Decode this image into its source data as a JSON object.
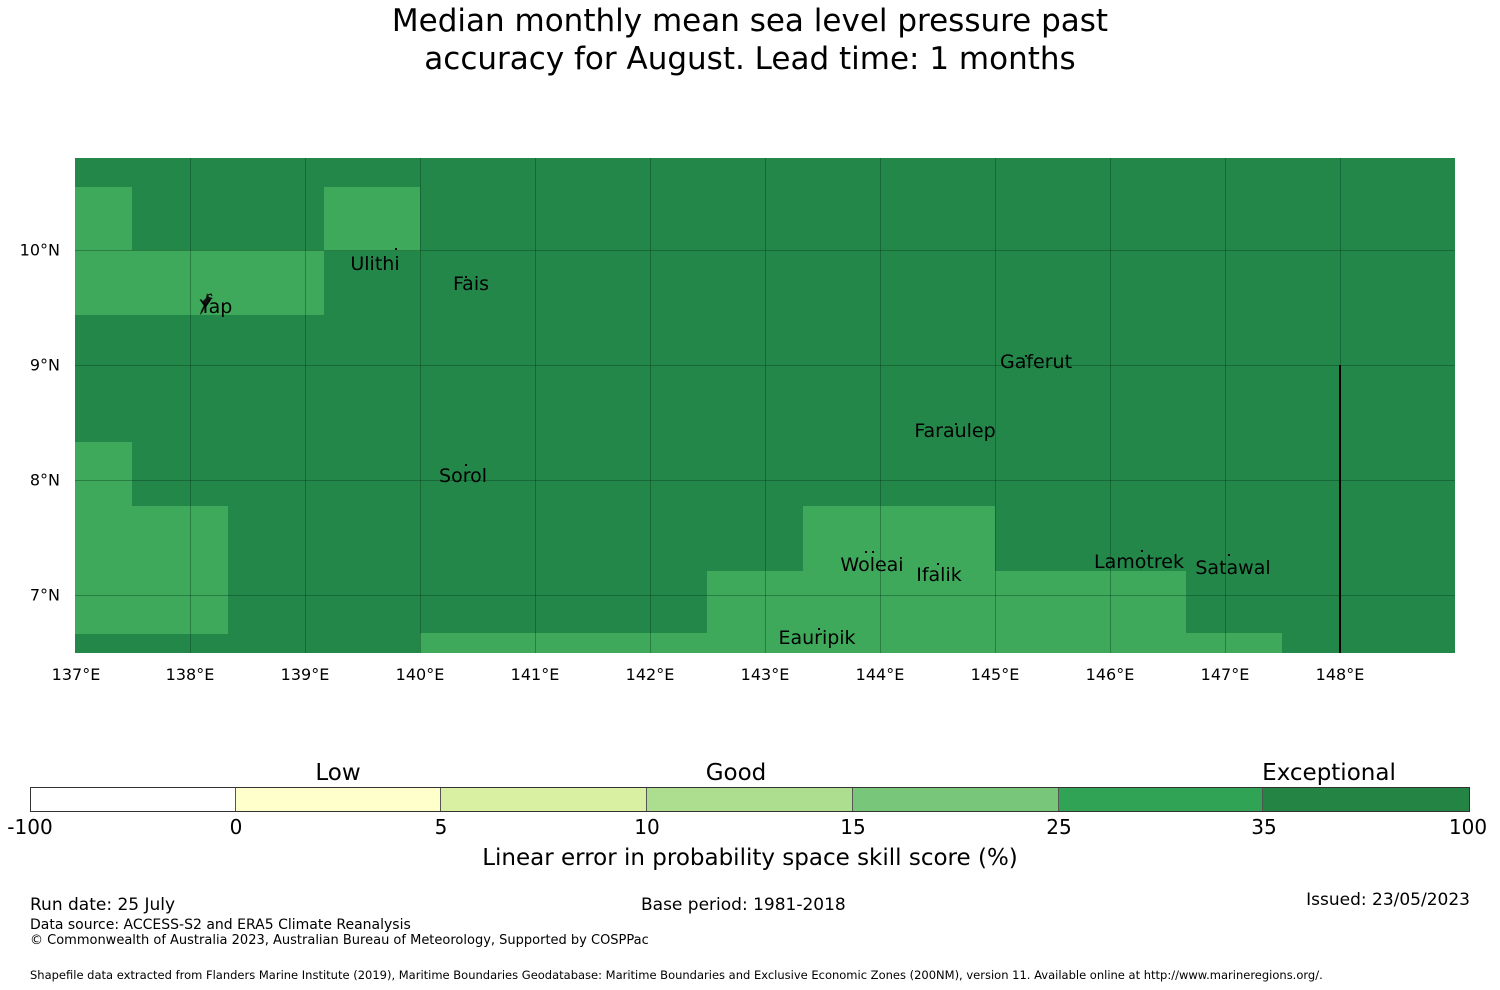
{
  "title": {
    "line1": "Median monthly mean sea level pressure past",
    "line2": "accuracy for August. Lead time: 1 months"
  },
  "map": {
    "background_color": "#23874a",
    "good_cell_color": "#3fa95b",
    "x_ticks": [
      "137°E",
      "138°E",
      "139°E",
      "140°E",
      "141°E",
      "142°E",
      "143°E",
      "144°E",
      "145°E",
      "146°E",
      "147°E",
      "148°E"
    ],
    "y_ticks": [
      "10°N",
      "9°N",
      "8°N",
      "7°N"
    ],
    "places": [
      {
        "name": "Ulithi"
      },
      {
        "name": "Fais"
      },
      {
        "name": "Yap"
      },
      {
        "name": "Gaferut"
      },
      {
        "name": "Faraulep"
      },
      {
        "name": "Sorol"
      },
      {
        "name": "Woleai"
      },
      {
        "name": "Ifalik"
      },
      {
        "name": "Lamotrek"
      },
      {
        "name": "Satawal"
      },
      {
        "name": "Eauripik"
      }
    ]
  },
  "legend": {
    "categories": [
      "Low",
      "Good",
      "Exceptional"
    ],
    "tick_labels": [
      "-100",
      "0",
      "5",
      "10",
      "15",
      "25",
      "35",
      "100"
    ],
    "colors": [
      "#ffffff",
      "#ffffcc",
      "#d9f0a3",
      "#addd8e",
      "#78c679",
      "#31a354",
      "#238443"
    ],
    "axis_label": "Linear error in probability space skill score (%)"
  },
  "footer": {
    "run_date": "Run date: 25 July",
    "base_period": "Base period: 1981-2018",
    "issued": "Issued: 23/05/2023",
    "data_source": "Data source: ACCESS-S2 and ERA5 Climate Reanalysis",
    "copyright": "© Commonwealth of Australia 2023, Australian Bureau of Meteorology, Supported by COSPPac",
    "shapefile": "Shapefile data extracted from Flanders Marine Institute (2019), Maritime Boundaries Geodatabase: Maritime Boundaries and Exclusive Economic Zones (200NM), version 11. Available online at http://www.marineregions.org/."
  }
}
